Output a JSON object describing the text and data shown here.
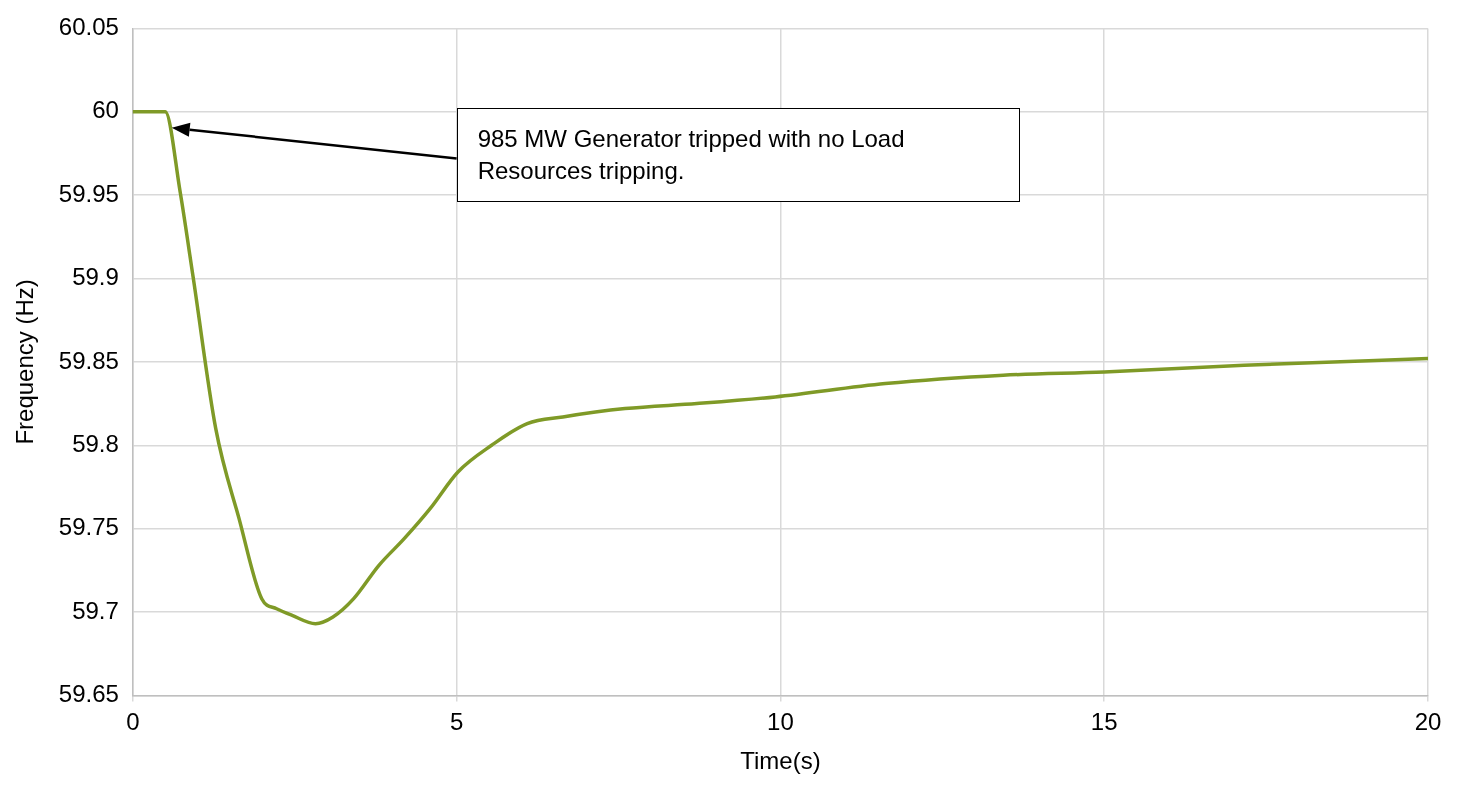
{
  "chart_data": {
    "type": "line",
    "xlabel": "Time(s)",
    "ylabel": "Frequency (Hz)",
    "xlim": [
      0,
      20
    ],
    "xticks": [
      0,
      5,
      10,
      15,
      20
    ],
    "ylim": [
      59.65,
      60.05
    ],
    "yticks": [
      59.65,
      59.7,
      59.75,
      59.8,
      59.85,
      59.9,
      59.95,
      60,
      60.05
    ],
    "grid": true,
    "legend": false,
    "marker": "none",
    "line_style": "solid",
    "annotations": [
      "985 MW Generator tripped with no Load Resources tripping."
    ],
    "series": [
      {
        "color": "#7f9a27",
        "x": [
          0,
          0.5,
          0.73,
          0.93,
          1.28,
          1.64,
          1.99,
          2.22,
          2.46,
          2.82,
          3.09,
          3.41,
          3.8,
          4.19,
          4.59,
          5.02,
          5.54,
          6.09,
          6.64,
          7.6,
          8.71,
          9.92,
          11.62,
          13.44,
          15,
          17.16,
          20
        ],
        "values": [
          60,
          60,
          59.952,
          59.901,
          59.81,
          59.756,
          59.708,
          59.702,
          59.698,
          59.693,
          59.697,
          59.708,
          59.728,
          59.744,
          59.762,
          59.784,
          59.8,
          59.813,
          59.817,
          59.822,
          59.825,
          59.829,
          59.837,
          59.842,
          59.844,
          59.848,
          59.852
        ]
      }
    ]
  }
}
